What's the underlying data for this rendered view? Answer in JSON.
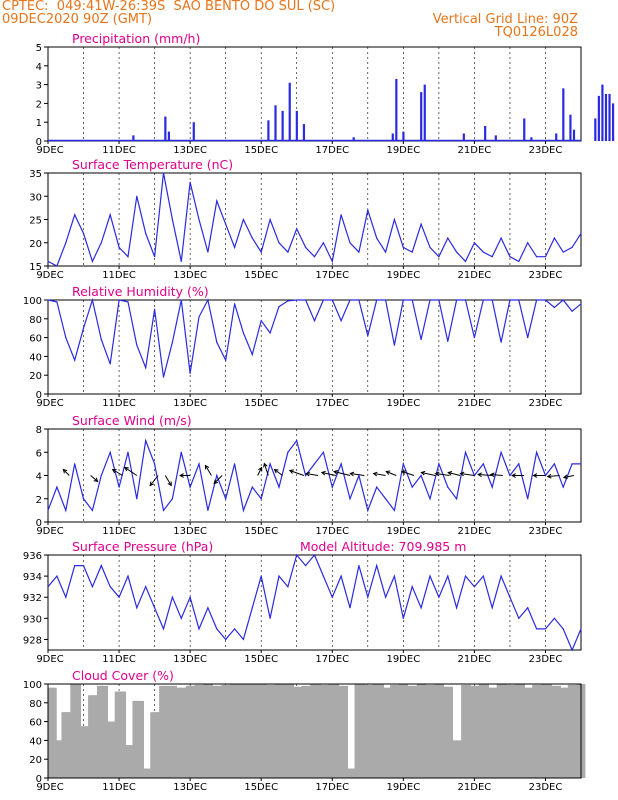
{
  "header": {
    "left1": "CPTEC:  049:41W-26:39S  SAO BENTO DO SUL (SC)",
    "left2": "09DEC2020 90Z (GMT)",
    "right1": "Vertical Grid Line: 90Z",
    "right2": "TQ0126L028"
  },
  "colors": {
    "header": "#e8741a",
    "title": "#e0008c",
    "series": "#2a2ae0",
    "cloud": "#aaaaaa"
  },
  "chart_data": [
    {
      "type": "bar",
      "title": "Precipitation (mm/h)",
      "x_labels": [
        "9DEC",
        "11DEC",
        "13DEC",
        "15DEC",
        "17DEC",
        "19DEC",
        "21DEC",
        "23DEC"
      ],
      "ylim": [
        0,
        5
      ],
      "yticks": [
        0,
        1,
        2,
        3,
        4,
        5
      ],
      "events": [
        {
          "day": 0.3,
          "v": 0.05
        },
        {
          "day": 2.4,
          "v": 0.3
        },
        {
          "day": 3.3,
          "v": 1.3
        },
        {
          "day": 3.4,
          "v": 0.5
        },
        {
          "day": 4.1,
          "v": 1.0
        },
        {
          "day": 6.2,
          "v": 1.1
        },
        {
          "day": 6.4,
          "v": 1.9
        },
        {
          "day": 6.6,
          "v": 1.6
        },
        {
          "day": 6.8,
          "v": 3.1
        },
        {
          "day": 7.0,
          "v": 1.6
        },
        {
          "day": 7.2,
          "v": 0.9
        },
        {
          "day": 8.6,
          "v": 0.2
        },
        {
          "day": 9.7,
          "v": 0.4
        },
        {
          "day": 9.8,
          "v": 3.3
        },
        {
          "day": 10.0,
          "v": 0.5
        },
        {
          "day": 10.5,
          "v": 2.6
        },
        {
          "day": 10.6,
          "v": 3.0
        },
        {
          "day": 11.7,
          "v": 0.4
        },
        {
          "day": 12.3,
          "v": 0.8
        },
        {
          "day": 12.6,
          "v": 0.3
        },
        {
          "day": 13.4,
          "v": 1.2
        },
        {
          "day": 13.6,
          "v": 0.2
        },
        {
          "day": 14.3,
          "v": 0.4
        },
        {
          "day": 14.5,
          "v": 2.8
        },
        {
          "day": 14.7,
          "v": 1.4
        },
        {
          "day": 14.8,
          "v": 0.6
        },
        {
          "day": 15.4,
          "v": 1.2
        },
        {
          "day": 15.5,
          "v": 2.4
        },
        {
          "day": 15.6,
          "v": 3.0
        },
        {
          "day": 15.7,
          "v": 2.5
        },
        {
          "day": 15.8,
          "v": 2.5
        },
        {
          "day": 15.9,
          "v": 2.0
        }
      ]
    },
    {
      "type": "line",
      "title": "Surface Temperature (nC)",
      "x_labels": [
        "9DEC",
        "11DEC",
        "13DEC",
        "15DEC",
        "17DEC",
        "19DEC",
        "21DEC",
        "23DEC"
      ],
      "ylim": [
        15,
        35
      ],
      "yticks": [
        15,
        20,
        25,
        30,
        35
      ],
      "days": [
        0,
        0.25,
        0.5,
        0.75,
        1.0,
        1.25,
        1.5,
        1.75,
        2.0,
        2.25,
        2.5,
        2.75,
        3.0,
        3.25,
        3.5,
        3.75,
        4.0,
        4.25,
        4.5,
        4.75,
        5.0,
        5.25,
        5.5,
        5.75,
        6.0,
        6.25,
        6.5,
        6.75,
        7.0,
        7.25,
        7.5,
        7.75,
        8.0,
        8.25,
        8.5,
        8.75,
        9.0,
        9.25,
        9.5,
        9.75,
        10.0,
        10.25,
        10.5,
        10.75,
        11.0,
        11.25,
        11.5,
        11.75,
        12.0,
        12.25,
        12.5,
        12.75,
        13.0,
        13.25,
        13.5,
        13.75,
        14.0,
        14.25,
        14.5,
        14.75,
        15.0
      ],
      "values": [
        16,
        15,
        20,
        26,
        22,
        16,
        20,
        26,
        19,
        17,
        30,
        22,
        17,
        35,
        25,
        16,
        33,
        25,
        18,
        29,
        24,
        19,
        25,
        21,
        18,
        25,
        20,
        18,
        23,
        19,
        17,
        20,
        16,
        26,
        20,
        18,
        27,
        21,
        18,
        25,
        19,
        18,
        24,
        19,
        17,
        21,
        18,
        16,
        20,
        18,
        17,
        21,
        17,
        16,
        20,
        17,
        17,
        21,
        18,
        19,
        22
      ]
    },
    {
      "type": "line",
      "title": "Relative Humidity (%)",
      "x_labels": [
        "9DEC",
        "11DEC",
        "13DEC",
        "15DEC",
        "17DEC",
        "19DEC",
        "21DEC",
        "23DEC"
      ],
      "ylim": [
        0,
        100
      ],
      "yticks": [
        0,
        20,
        40,
        60,
        80,
        100
      ],
      "days": [
        0,
        0.25,
        0.5,
        0.75,
        1.0,
        1.25,
        1.5,
        1.75,
        2.0,
        2.25,
        2.5,
        2.75,
        3.0,
        3.25,
        3.5,
        3.75,
        4.0,
        4.25,
        4.5,
        4.75,
        5.0,
        5.25,
        5.5,
        5.75,
        6.0,
        6.25,
        6.5,
        6.75,
        7.0,
        7.25,
        7.5,
        7.75,
        8.0,
        8.25,
        8.5,
        8.75,
        9.0,
        9.25,
        9.5,
        9.75,
        10.0,
        10.25,
        10.5,
        10.75,
        11.0,
        11.25,
        11.5,
        11.75,
        12.0,
        12.25,
        12.5,
        12.75,
        13.0,
        13.25,
        13.5,
        13.75,
        14.0,
        14.25,
        14.5,
        14.75,
        15.0
      ],
      "values": [
        100,
        98,
        60,
        36,
        70,
        100,
        58,
        32,
        100,
        98,
        52,
        28,
        90,
        18,
        55,
        100,
        22,
        82,
        100,
        55,
        36,
        96,
        65,
        42,
        78,
        65,
        93,
        99,
        100,
        100,
        78,
        100,
        100,
        78,
        100,
        100,
        62,
        100,
        100,
        52,
        100,
        100,
        58,
        100,
        100,
        56,
        100,
        100,
        60,
        100,
        100,
        55,
        100,
        100,
        60,
        100,
        100,
        92,
        100,
        88,
        96
      ]
    },
    {
      "type": "line",
      "title": "Surface Wind (m/s)",
      "x_labels": [
        "9DEC",
        "11DEC",
        "13DEC",
        "15DEC",
        "17DEC",
        "19DEC",
        "21DEC",
        "23DEC"
      ],
      "ylim": [
        0,
        8
      ],
      "yticks": [
        0,
        2,
        4,
        6,
        8
      ],
      "days": [
        0,
        0.25,
        0.5,
        0.75,
        1.0,
        1.25,
        1.5,
        1.75,
        2.0,
        2.25,
        2.5,
        2.75,
        3.0,
        3.25,
        3.5,
        3.75,
        4.0,
        4.25,
        4.5,
        4.75,
        5.0,
        5.25,
        5.5,
        5.75,
        6.0,
        6.25,
        6.5,
        6.75,
        7.0,
        7.25,
        7.5,
        7.75,
        8.0,
        8.25,
        8.5,
        8.75,
        9.0,
        9.25,
        9.5,
        9.75,
        10.0,
        10.25,
        10.5,
        10.75,
        11.0,
        11.25,
        11.5,
        11.75,
        12.0,
        12.25,
        12.5,
        12.75,
        13.0,
        13.25,
        13.5,
        13.75,
        14.0,
        14.25,
        14.5,
        14.75,
        15.0
      ],
      "values": [
        1,
        3,
        1,
        5,
        2,
        1,
        4,
        6,
        3,
        6,
        2,
        7,
        5,
        1,
        2,
        6,
        3,
        5,
        1,
        4,
        2,
        5,
        1,
        3,
        2,
        5,
        3,
        6,
        7,
        4,
        5,
        6,
        3,
        5,
        2,
        4,
        1,
        3,
        2,
        1,
        5,
        3,
        4,
        2,
        5,
        3,
        2,
        6,
        4,
        5,
        3,
        6,
        4,
        5,
        2,
        6,
        4,
        5,
        3,
        5,
        5
      ],
      "arrows": [
        {
          "day": 0.6,
          "u": -6,
          "v": -6
        },
        {
          "day": 1.2,
          "u": 7,
          "v": 6
        },
        {
          "day": 2.1,
          "u": -10,
          "v": -6
        },
        {
          "day": 2.5,
          "u": -12,
          "v": -8
        },
        {
          "day": 3.1,
          "u": -8,
          "v": 10
        },
        {
          "day": 3.3,
          "u": 6,
          "v": 10
        },
        {
          "day": 4.0,
          "u": -10,
          "v": 0
        },
        {
          "day": 4.6,
          "u": -6,
          "v": -10
        },
        {
          "day": 4.9,
          "u": -8,
          "v": 8
        },
        {
          "day": 5.9,
          "u": 4,
          "v": -8
        },
        {
          "day": 6.2,
          "u": -4,
          "v": -12
        },
        {
          "day": 6.6,
          "u": -8,
          "v": -6
        },
        {
          "day": 7.2,
          "u": -14,
          "v": -5
        },
        {
          "day": 7.6,
          "u": -12,
          "v": -2
        },
        {
          "day": 8.1,
          "u": -14,
          "v": -3
        },
        {
          "day": 8.5,
          "u": -16,
          "v": -4
        },
        {
          "day": 8.9,
          "u": -14,
          "v": -2
        },
        {
          "day": 9.5,
          "u": -12,
          "v": -2
        },
        {
          "day": 9.8,
          "u": -10,
          "v": -4
        },
        {
          "day": 10.3,
          "u": -12,
          "v": -4
        },
        {
          "day": 10.9,
          "u": -14,
          "v": -3
        },
        {
          "day": 11.3,
          "u": -14,
          "v": -2
        },
        {
          "day": 11.6,
          "u": -12,
          "v": -3
        },
        {
          "day": 12.0,
          "u": -14,
          "v": -2
        },
        {
          "day": 12.5,
          "u": -14,
          "v": -1
        },
        {
          "day": 12.8,
          "u": -12,
          "v": -1
        },
        {
          "day": 13.4,
          "u": -12,
          "v": 0
        },
        {
          "day": 14.0,
          "u": -12,
          "v": 0
        },
        {
          "day": 14.4,
          "u": -12,
          "v": 1
        },
        {
          "day": 14.8,
          "u": -10,
          "v": 2
        }
      ]
    },
    {
      "type": "line",
      "title": "Surface Pressure (hPa)",
      "annotation": "Model Altitude: 709.985  m",
      "x_labels": [
        "9DEC",
        "11DEC",
        "13DEC",
        "15DEC",
        "17DEC",
        "19DEC",
        "21DEC",
        "23DEC"
      ],
      "ylim": [
        927,
        936
      ],
      "yticks": [
        928,
        930,
        932,
        934,
        936
      ],
      "days": [
        0,
        0.25,
        0.5,
        0.75,
        1.0,
        1.25,
        1.5,
        1.75,
        2.0,
        2.25,
        2.5,
        2.75,
        3.0,
        3.25,
        3.5,
        3.75,
        4.0,
        4.25,
        4.5,
        4.75,
        5.0,
        5.25,
        5.5,
        5.75,
        6.0,
        6.25,
        6.5,
        6.75,
        7.0,
        7.25,
        7.5,
        7.75,
        8.0,
        8.25,
        8.5,
        8.75,
        9.0,
        9.25,
        9.5,
        9.75,
        10.0,
        10.25,
        10.5,
        10.75,
        11.0,
        11.25,
        11.5,
        11.75,
        12.0,
        12.25,
        12.5,
        12.75,
        13.0,
        13.25,
        13.5,
        13.75,
        14.0,
        14.25,
        14.5,
        14.75,
        15.0
      ],
      "values": [
        933,
        934,
        932,
        935,
        935,
        933,
        935,
        933,
        932,
        934,
        931,
        933,
        931,
        929,
        932,
        930,
        932,
        929,
        931,
        929,
        928,
        929,
        928,
        931,
        934,
        930,
        934,
        933,
        936,
        935,
        936,
        934,
        932,
        934,
        931,
        935,
        932,
        935,
        932,
        934,
        930,
        933,
        931,
        934,
        932,
        934,
        931,
        934,
        933,
        934,
        931,
        934,
        932,
        930,
        931,
        929,
        929,
        930,
        929,
        927,
        929
      ]
    },
    {
      "type": "area",
      "title": "Cloud Cover (%)",
      "x_labels": [
        "9DEC",
        "11DEC",
        "13DEC",
        "15DEC",
        "17DEC",
        "19DEC",
        "21DEC",
        "23DEC"
      ],
      "ylim": [
        0,
        100
      ],
      "yticks": [
        0,
        20,
        40,
        60,
        80,
        100
      ],
      "days": [
        0,
        0.25,
        0.5,
        0.75,
        1.0,
        1.25,
        1.5,
        1.75,
        2.0,
        2.25,
        2.5,
        2.75,
        3.0,
        3.25,
        3.5,
        3.75,
        4.0,
        4.25,
        4.5,
        4.75,
        5.0,
        5.25,
        5.5,
        5.75,
        6.0,
        6.25,
        6.5,
        6.75,
        7.0,
        7.25,
        7.5,
        7.75,
        8.0,
        8.25,
        8.5,
        8.75,
        9.0,
        9.25,
        9.5,
        9.75,
        10.0,
        10.25,
        10.5,
        10.75,
        11.0,
        11.25,
        11.5,
        11.75,
        12.0,
        12.25,
        12.5,
        12.75,
        13.0,
        13.25,
        13.5,
        13.75,
        14.0,
        14.25,
        14.5,
        14.75,
        15.0
      ],
      "values": [
        96,
        40,
        70,
        100,
        55,
        88,
        98,
        60,
        92,
        35,
        82,
        10,
        70,
        98,
        98,
        96,
        98,
        99,
        100,
        98,
        99,
        100,
        100,
        100,
        100,
        99,
        100,
        100,
        97,
        98,
        100,
        99,
        100,
        98,
        10,
        100,
        99,
        100,
        96,
        99,
        100,
        98,
        100,
        99,
        100,
        97,
        40,
        99,
        98,
        100,
        96,
        100,
        99,
        100,
        96,
        99,
        100,
        98,
        96,
        99,
        100
      ]
    }
  ]
}
